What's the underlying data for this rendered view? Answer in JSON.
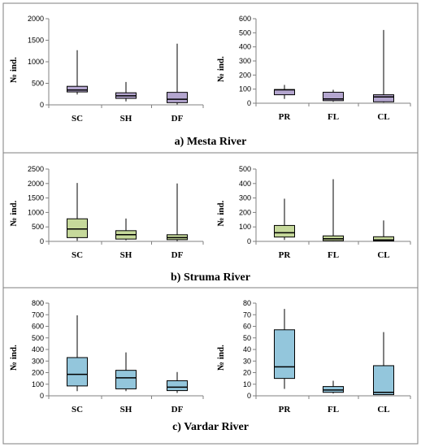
{
  "chart_data": [
    {
      "panel": "a",
      "caption": "a) Mesta River",
      "charts": [
        {
          "type": "box",
          "ylabel": "№ ind.",
          "ylim": [
            0,
            2000
          ],
          "yticks": [
            0,
            500,
            1000,
            1500,
            2000
          ],
          "color": "#b4a6cf",
          "categories": [
            "SC",
            "SH",
            "DF"
          ],
          "boxes": [
            {
              "min": 240,
              "q1": 300,
              "median": 345,
              "q3": 430,
              "max": 1270
            },
            {
              "min": 80,
              "q1": 150,
              "median": 210,
              "q3": 280,
              "max": 530
            },
            {
              "min": 10,
              "q1": 50,
              "median": 130,
              "q3": 290,
              "max": 1420
            }
          ]
        },
        {
          "type": "box",
          "ylabel": "№ ind.",
          "ylim": [
            0,
            600
          ],
          "yticks": [
            0,
            100,
            200,
            300,
            400,
            500,
            600
          ],
          "color": "#b4a6cf",
          "categories": [
            "PR",
            "FL",
            "CL"
          ],
          "boxes": [
            {
              "min": 30,
              "q1": 60,
              "median": 95,
              "q3": 97,
              "max": 130
            },
            {
              "min": 10,
              "q1": 18,
              "median": 30,
              "q3": 78,
              "max": 95
            },
            {
              "min": 5,
              "q1": 10,
              "median": 45,
              "q3": 60,
              "max": 520
            }
          ]
        }
      ]
    },
    {
      "panel": "b",
      "caption": "b) Struma River",
      "charts": [
        {
          "type": "box",
          "ylabel": "№ ind.",
          "ylim": [
            0,
            2500
          ],
          "yticks": [
            0,
            500,
            1000,
            1500,
            2000,
            2500
          ],
          "color": "#c6d99b",
          "categories": [
            "SC",
            "SH",
            "DF"
          ],
          "boxes": [
            {
              "min": 20,
              "q1": 130,
              "median": 430,
              "q3": 780,
              "max": 2020
            },
            {
              "min": 40,
              "q1": 80,
              "median": 230,
              "q3": 370,
              "max": 790
            },
            {
              "min": 10,
              "q1": 60,
              "median": 130,
              "q3": 230,
              "max": 2000
            }
          ]
        },
        {
          "type": "box",
          "ylabel": "№ ind.",
          "ylim": [
            0,
            500
          ],
          "yticks": [
            0,
            100,
            200,
            300,
            400,
            500
          ],
          "color": "#c6d99b",
          "categories": [
            "PR",
            "FL",
            "CL"
          ],
          "boxes": [
            {
              "min": 10,
              "q1": 30,
              "median": 60,
              "q3": 110,
              "max": 295
            },
            {
              "min": 2,
              "q1": 5,
              "median": 18,
              "q3": 38,
              "max": 430
            },
            {
              "min": 1,
              "q1": 3,
              "median": 10,
              "q3": 32,
              "max": 145
            }
          ]
        }
      ]
    },
    {
      "panel": "c",
      "caption": "c) Vardar River",
      "charts": [
        {
          "type": "box",
          "ylabel": "№ ind.",
          "ylim": [
            0,
            800
          ],
          "yticks": [
            0,
            100,
            200,
            300,
            400,
            500,
            600,
            700,
            800
          ],
          "color": "#93c6dc",
          "categories": [
            "SC",
            "SH",
            "DF"
          ],
          "boxes": [
            {
              "min": 40,
              "q1": 85,
              "median": 185,
              "q3": 330,
              "max": 695
            },
            {
              "min": 40,
              "q1": 60,
              "median": 155,
              "q3": 220,
              "max": 375
            },
            {
              "min": 25,
              "q1": 45,
              "median": 75,
              "q3": 130,
              "max": 205
            }
          ]
        },
        {
          "type": "box",
          "ylabel": "№ ind.",
          "ylim": [
            0,
            80
          ],
          "yticks": [
            0,
            10,
            20,
            30,
            40,
            50,
            60,
            70,
            80
          ],
          "color": "#93c6dc",
          "categories": [
            "PR",
            "FL",
            "CL"
          ],
          "boxes": [
            {
              "min": 6,
              "q1": 15,
              "median": 25,
              "q3": 57,
              "max": 75
            },
            {
              "min": 2,
              "q1": 3,
              "median": 5,
              "q3": 8,
              "max": 13
            },
            {
              "min": 1,
              "q1": 1,
              "median": 3,
              "q3": 26,
              "max": 55
            }
          ]
        }
      ]
    }
  ]
}
